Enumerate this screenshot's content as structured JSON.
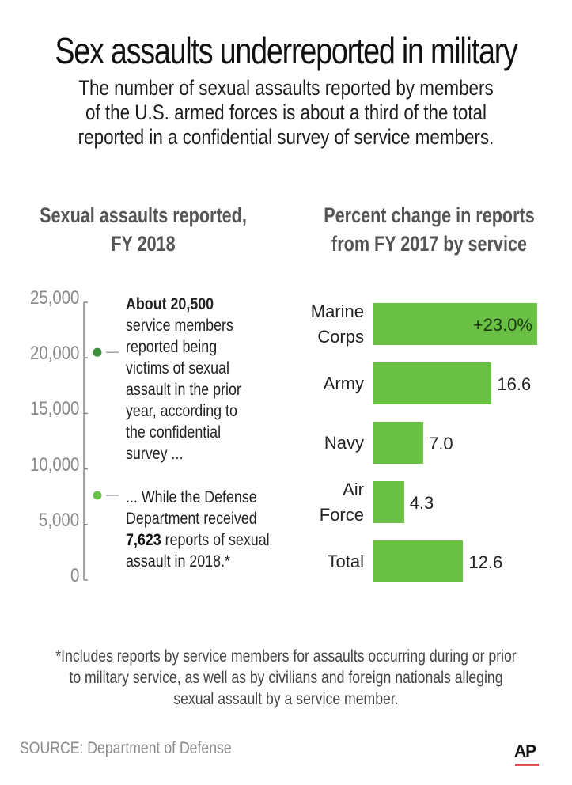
{
  "header": {
    "title": "Sex assaults underreported in military",
    "subtitle_lines": [
      "The number of sexual assaults reported by members",
      "of the U.S. armed forces is about a third of the total",
      "reported in a confidential survey of service members."
    ]
  },
  "colors": {
    "bar_green": "#6abf45",
    "dot_dark_green": "#3b8f3a",
    "dot_light_green": "#6cc04a",
    "axis_gray": "#8a8a8a",
    "ap_red": "#e2505c"
  },
  "chart_data": [
    {
      "type": "scatter",
      "title_lines": [
        "Sexual assaults reported,",
        "FY 2018"
      ],
      "xlabel": "",
      "ylabel": "",
      "ylim": [
        0,
        25000
      ],
      "yticks": [
        0,
        5000,
        10000,
        15000,
        20000,
        25000
      ],
      "ytick_labels": [
        "0",
        "5,000",
        "10,000",
        "15,000",
        "20,000",
        "25,000"
      ],
      "grid": false,
      "points": [
        {
          "name": "Confidential survey",
          "value": 20500,
          "color": "#3b8f3a",
          "annotation_bold": "About 20,500",
          "annotation_lines": [
            "service members",
            "reported being",
            "victims of sexual",
            "assault in the prior",
            "year, according to",
            "the confidential",
            "survey ..."
          ]
        },
        {
          "name": "Defense Department reports",
          "value": 7623,
          "color": "#6cc04a",
          "annotation_lines_pre": [
            "... While the Defense",
            "Department received"
          ],
          "annotation_bold": "7,623",
          "annotation_after_bold": " reports of sexual",
          "annotation_last": "assault in 2018.*"
        }
      ]
    },
    {
      "type": "bar",
      "orientation": "horizontal",
      "title_lines": [
        "Percent change in reports",
        "from FY 2017 by service"
      ],
      "categories": [
        {
          "label_lines": [
            "Marine",
            "Corps"
          ]
        },
        {
          "label_lines": [
            "Army"
          ]
        },
        {
          "label_lines": [
            "Navy"
          ]
        },
        {
          "label_lines": [
            "Air",
            "Force"
          ]
        },
        {
          "label_lines": [
            "Total"
          ]
        }
      ],
      "values": [
        23.0,
        16.6,
        7.0,
        4.3,
        12.6
      ],
      "value_labels": [
        "+23.0%",
        "16.6",
        "7.0",
        "4.3",
        "12.6"
      ],
      "xlim": [
        0,
        23.0
      ],
      "unit": "%",
      "color": "#6abf45"
    }
  ],
  "footer": {
    "footnote_lines": [
      "*Includes reports by service members for assaults occurring during or prior",
      "to military service, as well as by civilians and foreign nationals alleging",
      "sexual assault by a service member."
    ],
    "source": "SOURCE: Department of Defense",
    "logo": "AP"
  }
}
